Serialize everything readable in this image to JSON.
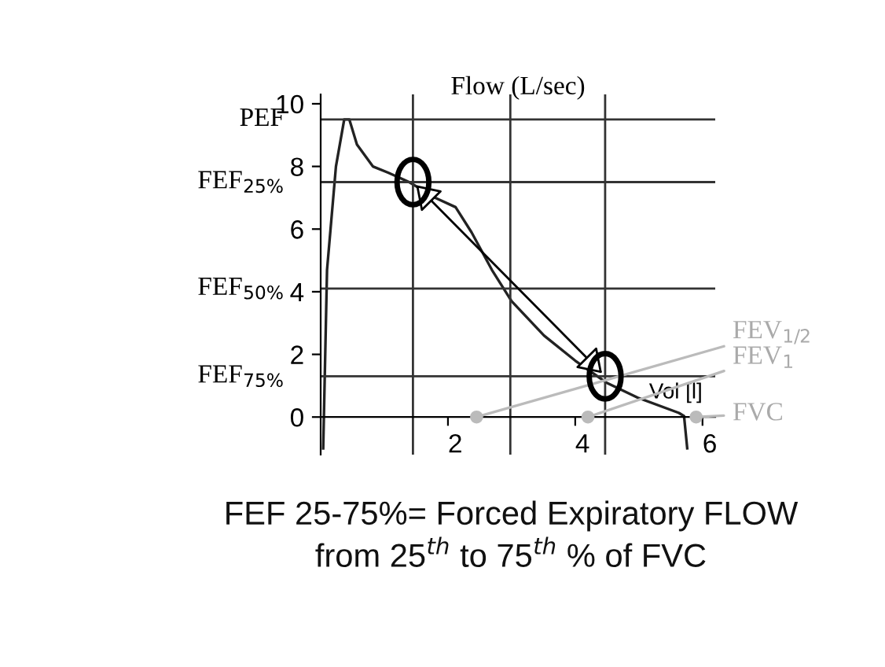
{
  "chart_data": {
    "type": "line",
    "ylabel": "Flow (L/sec)",
    "xlabel": "Vol [l]",
    "x": [
      0.04,
      0.1,
      0.24,
      0.37,
      0.45,
      0.57,
      0.82,
      1.06,
      1.39,
      1.8,
      2.12,
      2.37,
      2.69,
      3.0,
      3.51,
      4.0,
      4.49,
      4.98,
      5.63,
      5.71,
      5.76
    ],
    "series": [
      {
        "color": "#222222",
        "values": [
          -1.0,
          4.7,
          8.0,
          9.5,
          9.5,
          8.7,
          8.0,
          7.8,
          7.5,
          7.0,
          6.7,
          5.9,
          4.7,
          3.7,
          2.6,
          1.8,
          1.1,
          0.62,
          0.13,
          0.03,
          -1.0
        ]
      }
    ],
    "xlim": [
      0,
      6.2
    ],
    "ylim": [
      -1.2,
      10.3
    ],
    "xticks": [
      2,
      4,
      6
    ],
    "yticks": [
      0,
      2,
      4,
      6,
      8,
      10
    ],
    "ref_lines": [
      {
        "axis": "y",
        "value": 9.5,
        "label": "PEF",
        "color": "#333333"
      },
      {
        "axis": "y",
        "value": 7.5,
        "label": "FEF$_{25%}$",
        "color": "#333333"
      },
      {
        "axis": "y",
        "value": 4.1,
        "label": "FEF$_{50%}$",
        "color": "#333333"
      },
      {
        "axis": "y",
        "value": 1.3,
        "label": "FEF$_{75%}$",
        "color": "#333333"
      },
      {
        "axis": "x",
        "value": 1.45,
        "color": "#333333"
      },
      {
        "axis": "x",
        "value": 2.98,
        "color": "#333333"
      },
      {
        "axis": "x",
        "value": 4.47,
        "color": "#333333"
      }
    ],
    "annotations": [
      {
        "text": "FEV$_{1/2}$",
        "x": 2.45,
        "y": 0
      },
      {
        "text": "FEV$_{1}$",
        "x": 4.2,
        "y": 0
      },
      {
        "text": "FVC",
        "x": 5.9,
        "y": 0
      },
      "FEF 25-75%= Forced Expiratory FLOW",
      "from 25$^{th}$ to 75$^{th}$ % of FVC"
    ],
    "grid": false,
    "legend": false,
    "marker": "none",
    "line_style": "solid"
  }
}
